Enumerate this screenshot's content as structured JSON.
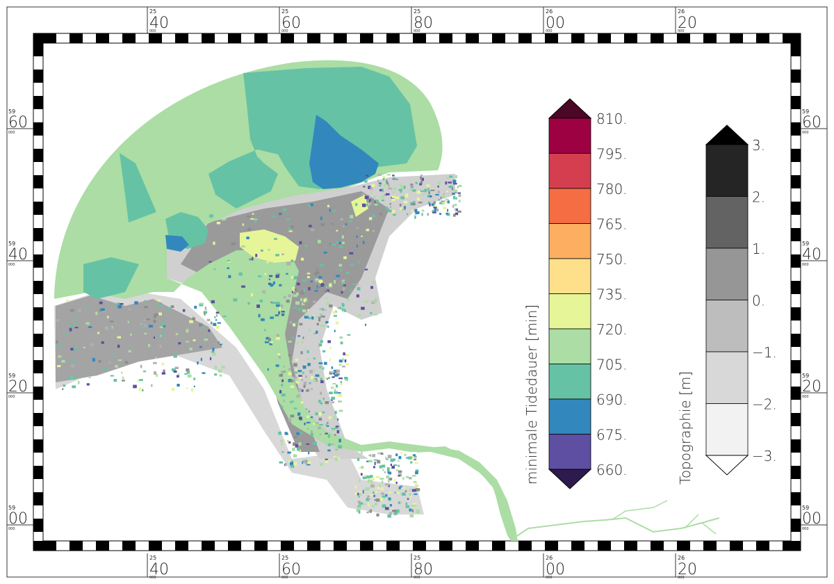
{
  "map": {
    "x_ticks": [
      {
        "prefix": "25",
        "value": "40",
        "sub": "000"
      },
      {
        "prefix": "25",
        "value": "60",
        "sub": "000"
      },
      {
        "prefix": "25",
        "value": "80",
        "sub": "000"
      },
      {
        "prefix": "26",
        "value": "00",
        "sub": "000"
      },
      {
        "prefix": "26",
        "value": "20",
        "sub": "000"
      }
    ],
    "y_ticks": [
      {
        "prefix": "59",
        "value": "60",
        "sub": "000"
      },
      {
        "prefix": "59",
        "value": "40",
        "sub": "000"
      },
      {
        "prefix": "59",
        "value": "20",
        "sub": "000"
      },
      {
        "prefix": "59",
        "value": "00",
        "sub": "000"
      }
    ],
    "colors": {
      "c_660": "#5e4fa2",
      "c_675": "#3288bd",
      "c_690": "#66c2a5",
      "c_705": "#abdda4",
      "c_720": "#e6f598",
      "c_735": "#fee08b",
      "c_750": "#fdae61",
      "c_765": "#f46d43",
      "c_780": "#d53e4f",
      "c_795": "#9e0142",
      "c_low": "#2d1b4e",
      "c_high": "#4a0826",
      "land_dark": "#8c8c8c",
      "land_mid": "#b0b0b0",
      "land_light": "#d8d8d8"
    }
  },
  "colorbar_tide": {
    "label": "minimale Tidedauer [min]",
    "ticks": [
      "810.",
      "795.",
      "780.",
      "765.",
      "750.",
      "735.",
      "720.",
      "705.",
      "690.",
      "675.",
      "660."
    ],
    "colors": [
      "#5e4fa2",
      "#3288bd",
      "#66c2a5",
      "#abdda4",
      "#e6f598",
      "#fee08b",
      "#fdae61",
      "#f46d43",
      "#d53e4f",
      "#9e0142"
    ],
    "under_color": "#2d1b4e",
    "over_color": "#4a0826"
  },
  "colorbar_topo": {
    "label": "Topographie [m]",
    "ticks": [
      "3.",
      "2.",
      "1.",
      "0.",
      "−1.",
      "−2.",
      "−3."
    ],
    "colors": [
      "#f2f2f2",
      "#d8d8d8",
      "#bdbdbd",
      "#969696",
      "#636363",
      "#252525"
    ],
    "under_color": "#ffffff",
    "over_color": "#000000"
  }
}
